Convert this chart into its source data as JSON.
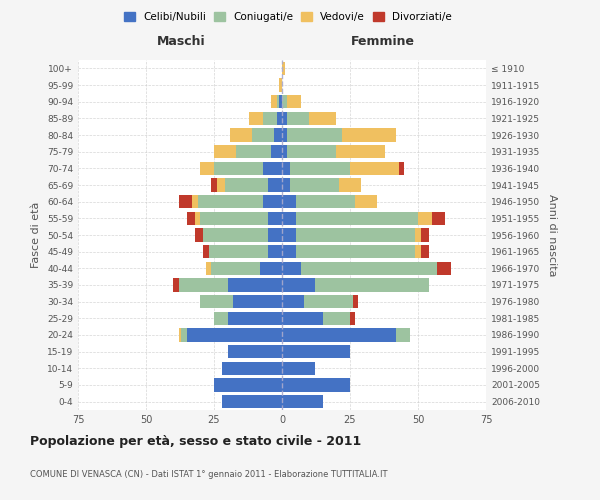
{
  "age_groups": [
    "0-4",
    "5-9",
    "10-14",
    "15-19",
    "20-24",
    "25-29",
    "30-34",
    "35-39",
    "40-44",
    "45-49",
    "50-54",
    "55-59",
    "60-64",
    "65-69",
    "70-74",
    "75-79",
    "80-84",
    "85-89",
    "90-94",
    "95-99",
    "100+"
  ],
  "birth_years": [
    "2006-2010",
    "2001-2005",
    "1996-2000",
    "1991-1995",
    "1986-1990",
    "1981-1985",
    "1976-1980",
    "1971-1975",
    "1966-1970",
    "1961-1965",
    "1956-1960",
    "1951-1955",
    "1946-1950",
    "1941-1945",
    "1936-1940",
    "1931-1935",
    "1926-1930",
    "1921-1925",
    "1916-1920",
    "1911-1915",
    "≤ 1910"
  ],
  "colors": {
    "celibe": "#4472C4",
    "coniugato": "#9DC3A0",
    "vedovo": "#F0C060",
    "divorziato": "#C0392B"
  },
  "maschi": {
    "celibe": [
      22,
      25,
      22,
      20,
      35,
      20,
      18,
      20,
      8,
      5,
      5,
      5,
      7,
      5,
      7,
      4,
      3,
      2,
      1,
      0,
      0
    ],
    "coniugato": [
      0,
      0,
      0,
      0,
      2,
      5,
      12,
      18,
      18,
      22,
      24,
      25,
      24,
      16,
      18,
      13,
      8,
      5,
      1,
      0,
      0
    ],
    "vedovo": [
      0,
      0,
      0,
      0,
      1,
      0,
      0,
      0,
      2,
      0,
      0,
      2,
      2,
      3,
      5,
      8,
      8,
      5,
      2,
      1,
      0
    ],
    "divorziato": [
      0,
      0,
      0,
      0,
      0,
      0,
      0,
      2,
      0,
      2,
      3,
      3,
      5,
      2,
      0,
      0,
      0,
      0,
      0,
      0,
      0
    ]
  },
  "femmine": {
    "nubile": [
      15,
      25,
      12,
      25,
      42,
      15,
      8,
      12,
      7,
      5,
      5,
      5,
      5,
      3,
      3,
      2,
      2,
      2,
      0,
      0,
      0
    ],
    "coniugata": [
      0,
      0,
      0,
      0,
      5,
      10,
      18,
      42,
      50,
      44,
      44,
      45,
      22,
      18,
      22,
      18,
      20,
      8,
      2,
      0,
      0
    ],
    "vedova": [
      0,
      0,
      0,
      0,
      0,
      0,
      0,
      0,
      0,
      2,
      2,
      5,
      8,
      8,
      18,
      18,
      20,
      10,
      5,
      0,
      1
    ],
    "divorziata": [
      0,
      0,
      0,
      0,
      0,
      2,
      2,
      0,
      5,
      3,
      3,
      5,
      0,
      0,
      2,
      0,
      0,
      0,
      0,
      0,
      0
    ]
  },
  "xlim": 75,
  "title": "Popolazione per età, sesso e stato civile - 2011",
  "subtitle": "COMUNE DI VENASCA (CN) - Dati ISTAT 1° gennaio 2011 - Elaborazione TUTTITALIA.IT",
  "ylabel_left": "Fasce di età",
  "ylabel_right": "Anni di nascita",
  "xlabel_left": "Maschi",
  "xlabel_right": "Femmine",
  "legend_labels": [
    "Celibi/Nubili",
    "Coniugati/e",
    "Vedovi/e",
    "Divorziati/e"
  ],
  "legend_colors": [
    "#4472C4",
    "#9DC3A0",
    "#F0C060",
    "#C0392B"
  ],
  "bg_color": "#F5F5F5",
  "plot_bg_color": "#FFFFFF",
  "grid_color": "#CCCCCC"
}
